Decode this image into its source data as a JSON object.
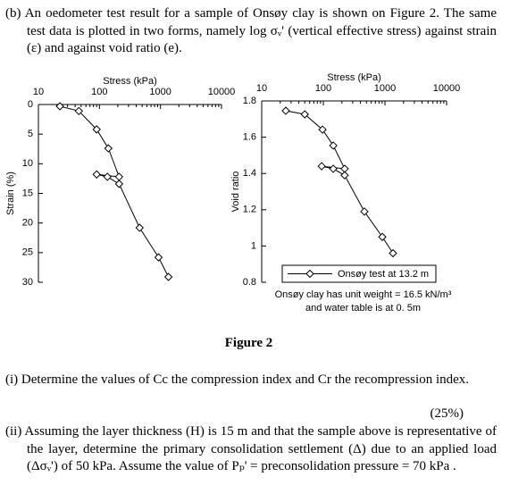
{
  "intro": "(b) An oedometer test result for a sample of Onsøy clay is shown on Figure 2. The same test data is plotted in two forms, namely log σᵥ' (vertical effective stress) against strain (ε) and against void ratio (e).",
  "chart_data": [
    {
      "type": "line",
      "x_label": "Stress (kPa)",
      "y_label": "Strain (%)",
      "xscale": "log",
      "xlim": [
        10,
        10000
      ],
      "xticks": [
        10,
        100,
        1000,
        10000
      ],
      "ylim": [
        0,
        30
      ],
      "yticks": [
        0,
        5,
        10,
        15,
        20,
        25,
        30
      ],
      "y_inverted": true,
      "x": [
        22.5,
        46,
        90,
        140,
        210,
        90,
        135,
        210,
        455,
        930,
        1350
      ],
      "series": [
        {
          "color": "#000000",
          "marker": "diamond",
          "values": [
            0.3,
            1.1,
            4.2,
            7.4,
            12.2,
            11.8,
            12.2,
            13.4,
            20.8,
            25.8,
            29.1
          ]
        }
      ]
    },
    {
      "type": "line",
      "x_label": "Stress (kPa)",
      "y_label": "Void ratio",
      "xscale": "log",
      "xlim": [
        10,
        10000
      ],
      "xticks": [
        10,
        100,
        1000,
        10000
      ],
      "ylim": [
        0.8,
        1.8
      ],
      "yticks": [
        0.8,
        1,
        1.2,
        1.4,
        1.6,
        1.8
      ],
      "y_inverted": false,
      "x": [
        24.6,
        50,
        97,
        145,
        222,
        94,
        145,
        222,
        464,
        906,
        1350
      ],
      "legend": "lower right",
      "series": [
        {
          "name": "Onsøy test at 13.2 m",
          "color": "#000000",
          "marker": "diamond",
          "values": [
            1.746,
            1.726,
            1.642,
            1.554,
            1.426,
            1.44,
            1.426,
            1.39,
            1.19,
            1.05,
            0.96
          ]
        }
      ],
      "annotations": [
        "Onsøy clay has unit weight = 16.5 kN/m³",
        "and water table is at 0. 5m"
      ]
    }
  ],
  "figure_caption": "Figure 2",
  "questions": [
    {
      "text": "(i) Determine the values of Cc the compression index and Cr the recompression index.",
      "marks": "(25%)"
    },
    {
      "text": "(ii) Assuming the layer thickness (H) is 15 m and that the sample above is representative of the layer, determine the primary consolidation settlement (Δ) due to an applied load (Δσᵥ') of 50 kPa. Assume the value of Pₚ' = preconsolidation pressure = 70 kPa ."
    }
  ]
}
